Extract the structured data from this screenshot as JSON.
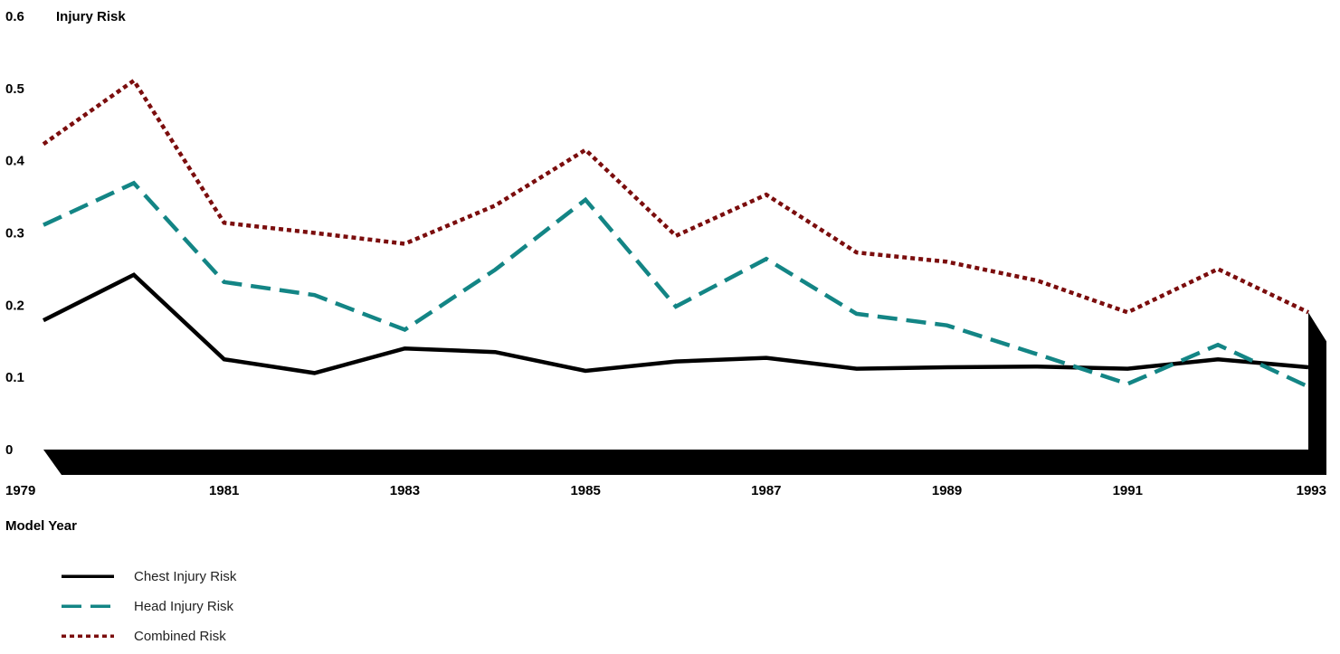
{
  "chart_data": {
    "type": "line",
    "title": "",
    "ylabel": "Injury Risk",
    "xlabel": "Model Year",
    "x": [
      1979,
      1980,
      1981,
      1982,
      1983,
      1984,
      1985,
      1986,
      1987,
      1988,
      1989,
      1990,
      1991,
      1992,
      1993
    ],
    "xticks": [
      "1979",
      "1981",
      "1983",
      "1985",
      "1987",
      "1989",
      "1991",
      "1993"
    ],
    "xtick_values": [
      1979,
      1981,
      1983,
      1985,
      1987,
      1989,
      1991,
      1993
    ],
    "yticks": [
      "0",
      "0.1",
      "0.2",
      "0.3",
      "0.4",
      "0.5",
      "0.6"
    ],
    "ytick_values": [
      0,
      0.1,
      0.2,
      0.3,
      0.4,
      0.5,
      0.6
    ],
    "ylim": [
      0,
      0.6
    ],
    "xlim": [
      1979,
      1993
    ],
    "grid": false,
    "legend_position": "bottom-left",
    "series": [
      {
        "name": "Chest Injury Risk",
        "color": "#000000",
        "style": "solid",
        "values": [
          0.179,
          0.242,
          0.125,
          0.106,
          0.14,
          0.135,
          0.109,
          0.122,
          0.127,
          0.112,
          0.114,
          0.115,
          0.112,
          0.125,
          0.114
        ]
      },
      {
        "name": "Head Injury Risk",
        "color": "#138585",
        "style": "dashed",
        "values": [
          0.311,
          0.369,
          0.232,
          0.214,
          0.166,
          0.249,
          0.346,
          0.198,
          0.264,
          0.188,
          0.172,
          0.132,
          0.091,
          0.145,
          0.087
        ]
      },
      {
        "name": "Combined Risk",
        "color": "#7b0d0d",
        "style": "dotted",
        "values": [
          0.423,
          0.511,
          0.314,
          0.3,
          0.285,
          0.338,
          0.415,
          0.296,
          0.353,
          0.273,
          0.26,
          0.234,
          0.19,
          0.25,
          0.19
        ]
      }
    ]
  }
}
